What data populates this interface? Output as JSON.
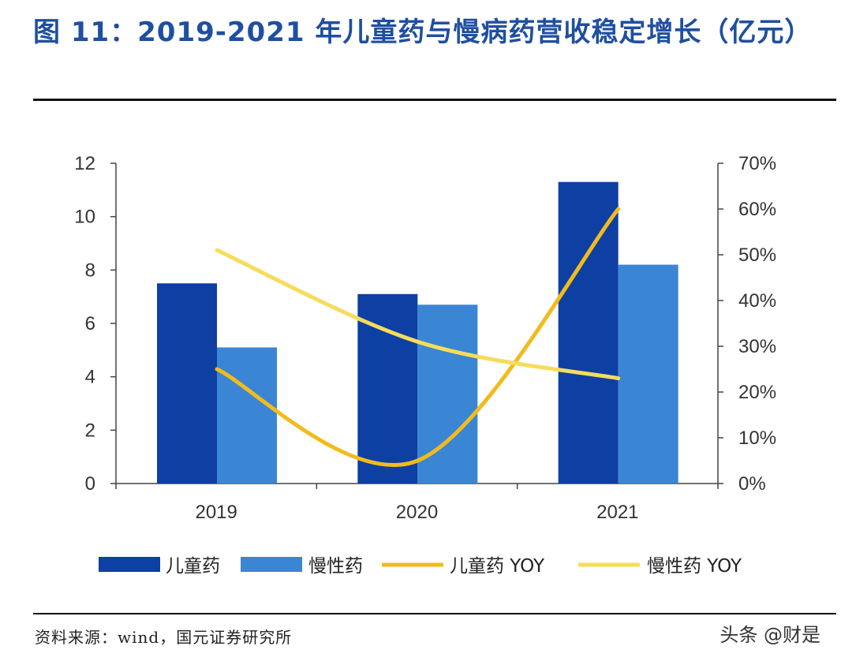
{
  "title": "图 11：2019-2021 年儿童药与慢病药营收稳定增长（亿元）",
  "source": "资料来源：wind，国元证券研究所",
  "watermark": "头条 @财是",
  "colors": {
    "child_bar": "#0e3fa3",
    "chronic_bar": "#3a86d4",
    "child_yoy": "#f2bb1c",
    "chronic_yoy": "#f7dc5a",
    "title": "#1f4fa0"
  },
  "chart_data": {
    "type": "bar",
    "categories": [
      "2019",
      "2020",
      "2021"
    ],
    "series": [
      {
        "name": "儿童药",
        "kind": "bar",
        "axis": "left",
        "values": [
          7.5,
          7.1,
          11.3
        ]
      },
      {
        "name": "慢性药",
        "kind": "bar",
        "axis": "left",
        "values": [
          5.1,
          6.7,
          8.2
        ]
      },
      {
        "name": "儿童药 YOY",
        "kind": "line",
        "axis": "right",
        "values": [
          25,
          5,
          60
        ]
      },
      {
        "name": "慢性药 YOY",
        "kind": "line",
        "axis": "right",
        "values": [
          51,
          31,
          23
        ]
      }
    ],
    "ylim_left": [
      0,
      12
    ],
    "yticks_left": [
      "0",
      "2",
      "4",
      "6",
      "8",
      "10",
      "12"
    ],
    "ylim_right": [
      0,
      70
    ],
    "yticks_right": [
      "0%",
      "10%",
      "20%",
      "30%",
      "40%",
      "50%",
      "60%",
      "70%"
    ],
    "grid": false,
    "legend": "bottom"
  }
}
